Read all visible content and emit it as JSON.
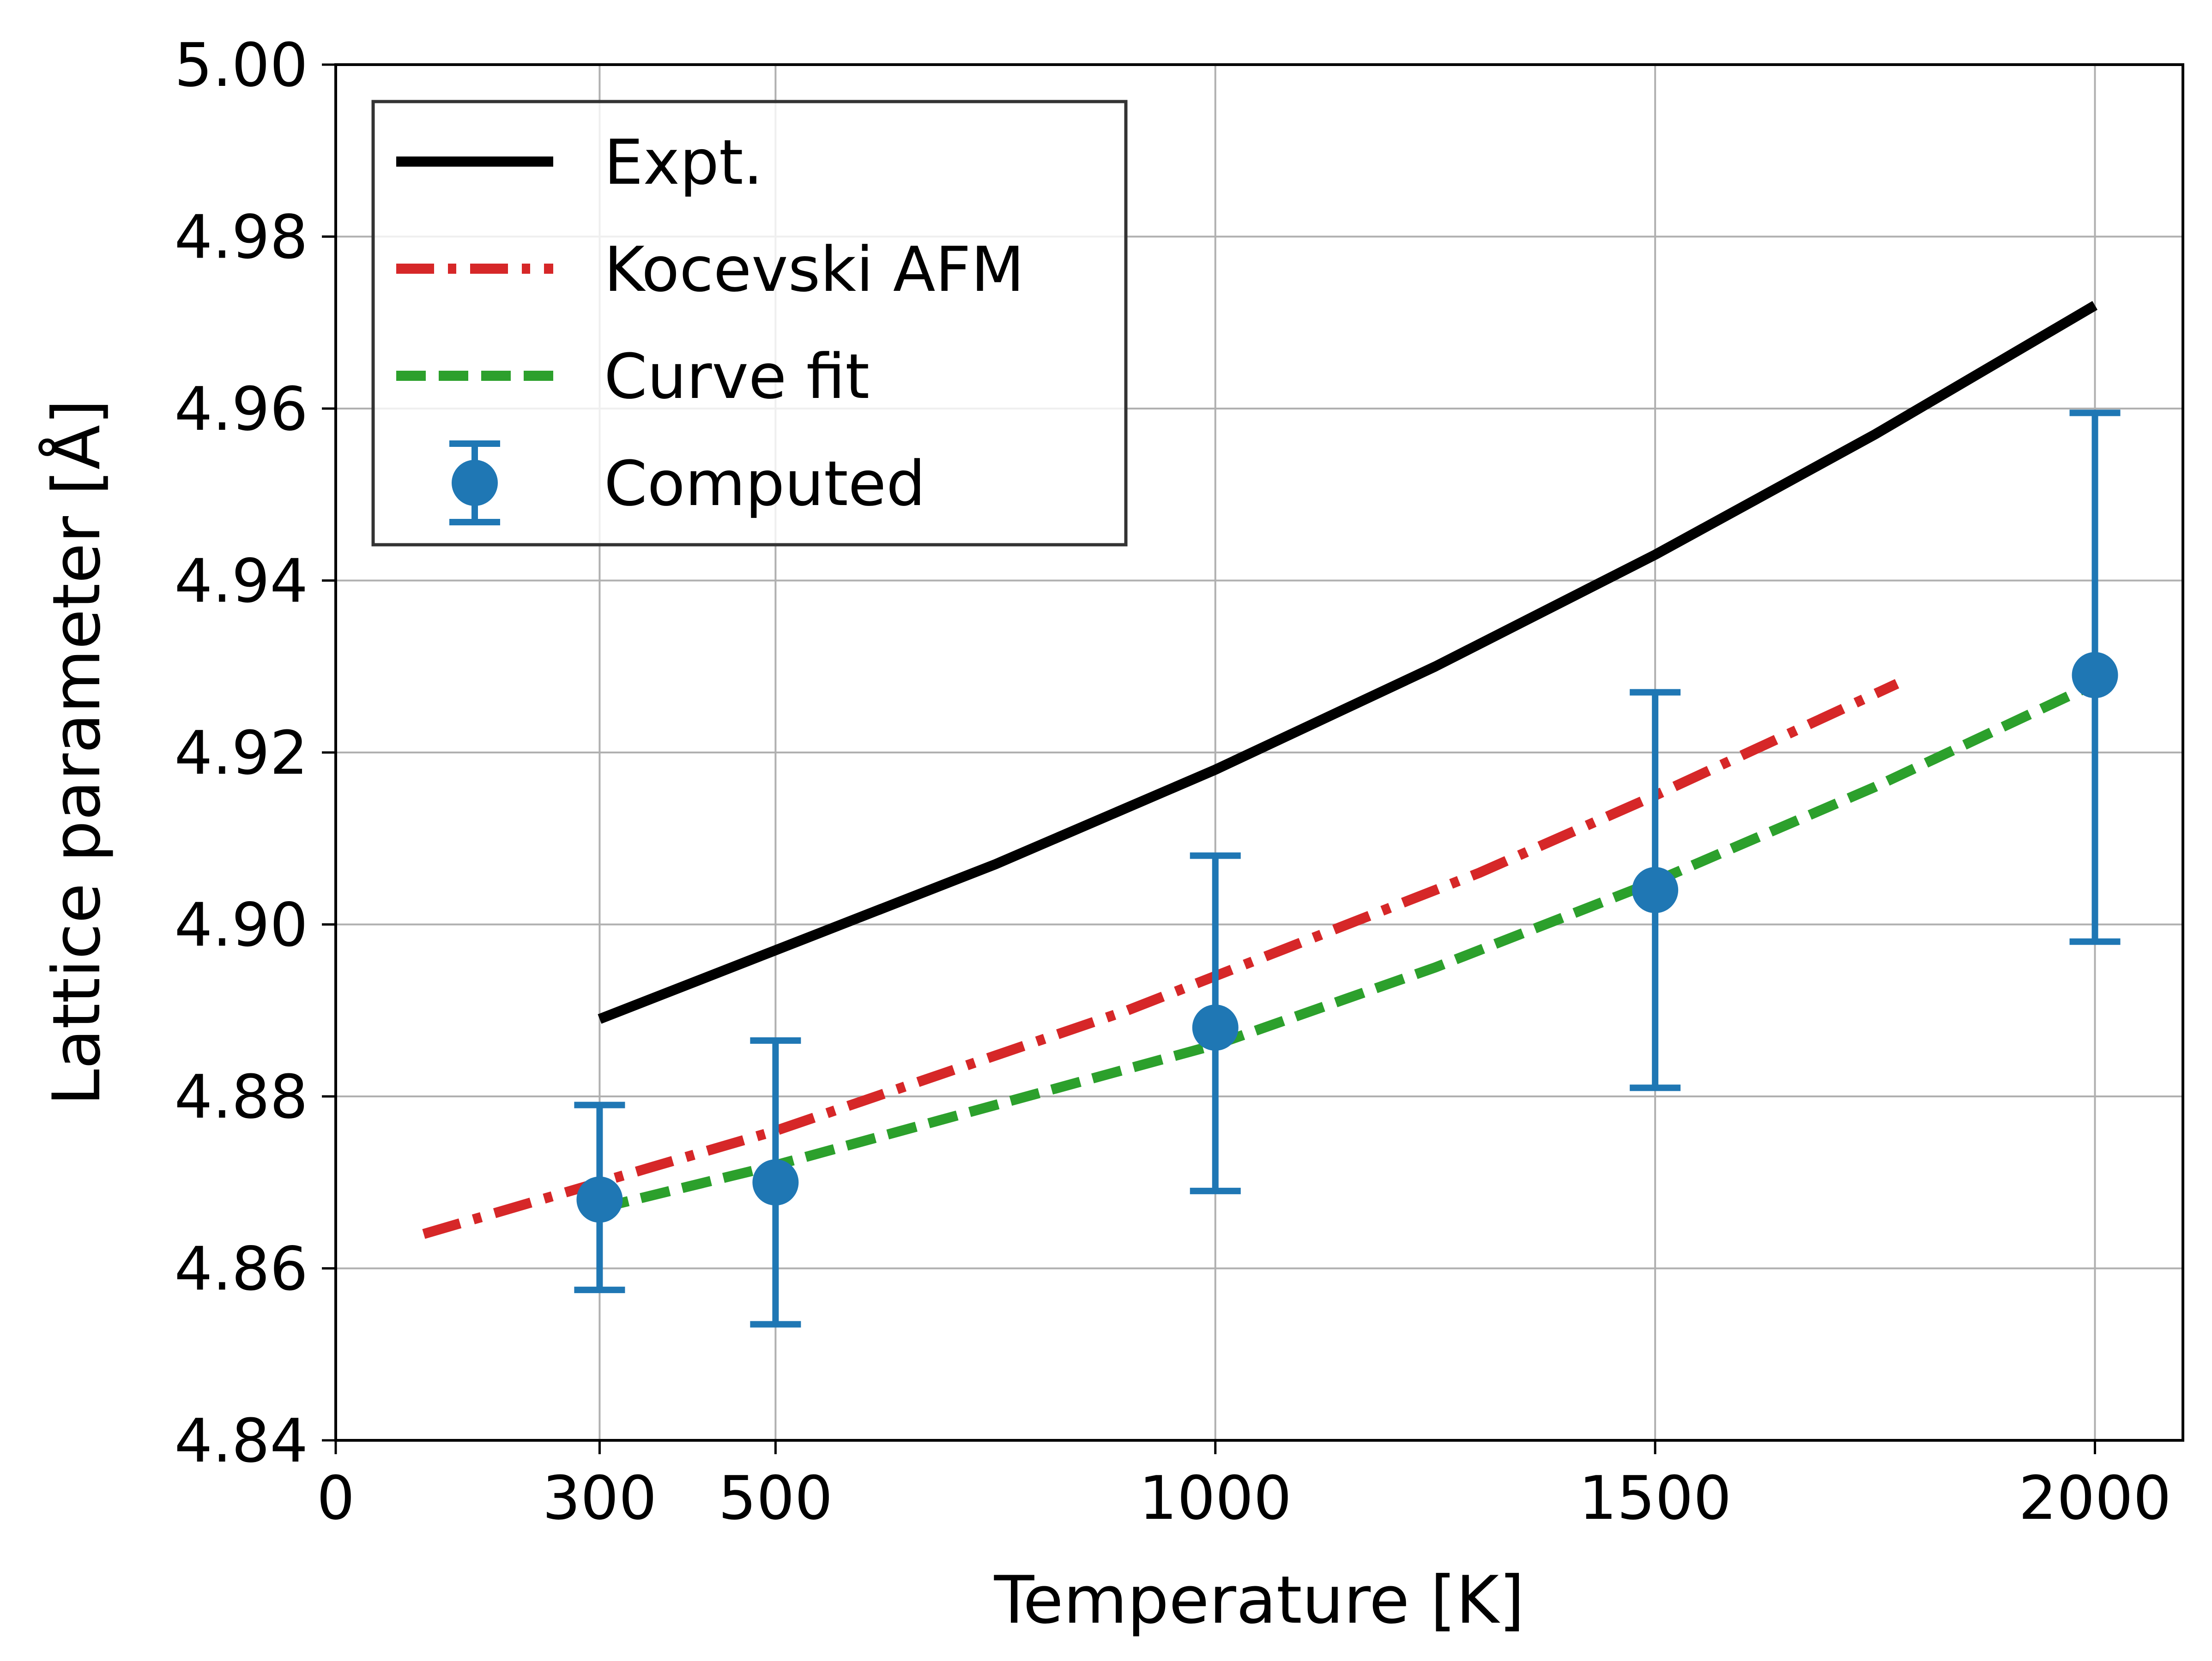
{
  "chart_data": {
    "type": "line",
    "xlabel": "Temperature [K]",
    "ylabel": "Lattice parameter [Å]",
    "xlim": [
      0,
      2100
    ],
    "ylim": [
      4.84,
      5.0
    ],
    "xticks": [
      0,
      300,
      500,
      1000,
      1500,
      2000
    ],
    "xtick_labels": [
      "0",
      "300",
      "500",
      "1000",
      "1500",
      "2000"
    ],
    "yticks": [
      4.84,
      4.86,
      4.88,
      4.9,
      4.92,
      4.94,
      4.96,
      4.98,
      5.0
    ],
    "ytick_labels": [
      "4.84",
      "4.86",
      "4.88",
      "4.90",
      "4.92",
      "4.94",
      "4.96",
      "4.98",
      "5.00"
    ],
    "grid": true,
    "legend_position": "top-left",
    "series": [
      {
        "name": "Expt.",
        "style": "solid",
        "color": "#000000",
        "x": [
          300,
          500,
          750,
          1000,
          1250,
          1500,
          1750,
          2000
        ],
        "y": [
          4.889,
          4.897,
          4.907,
          4.918,
          4.93,
          4.943,
          4.957,
          4.972
        ]
      },
      {
        "name": "Kocevski AFM",
        "style": "dashdot",
        "color": "#d62728",
        "x": [
          100,
          300,
          500,
          700,
          900,
          1100,
          1300,
          1500,
          1775
        ],
        "y": [
          4.864,
          4.87,
          4.876,
          4.883,
          4.89,
          4.898,
          4.906,
          4.915,
          4.928
        ]
      },
      {
        "name": "Curve fit",
        "style": "dashed",
        "color": "#2ca02c",
        "x": [
          300,
          500,
          750,
          1000,
          1250,
          1500,
          1750,
          2000
        ],
        "y": [
          4.867,
          4.872,
          4.879,
          4.886,
          4.895,
          4.905,
          4.916,
          4.928
        ]
      },
      {
        "name": "Computed",
        "style": "errorbar",
        "color": "#1f77b4",
        "x": [
          300,
          500,
          1000,
          1500,
          2000
        ],
        "y": [
          4.868,
          4.87,
          4.888,
          4.904,
          4.929
        ],
        "yerr_low": [
          4.8575,
          4.8535,
          4.869,
          4.881,
          4.898
        ],
        "yerr_high": [
          4.879,
          4.8865,
          4.908,
          4.927,
          4.9595
        ]
      }
    ]
  }
}
